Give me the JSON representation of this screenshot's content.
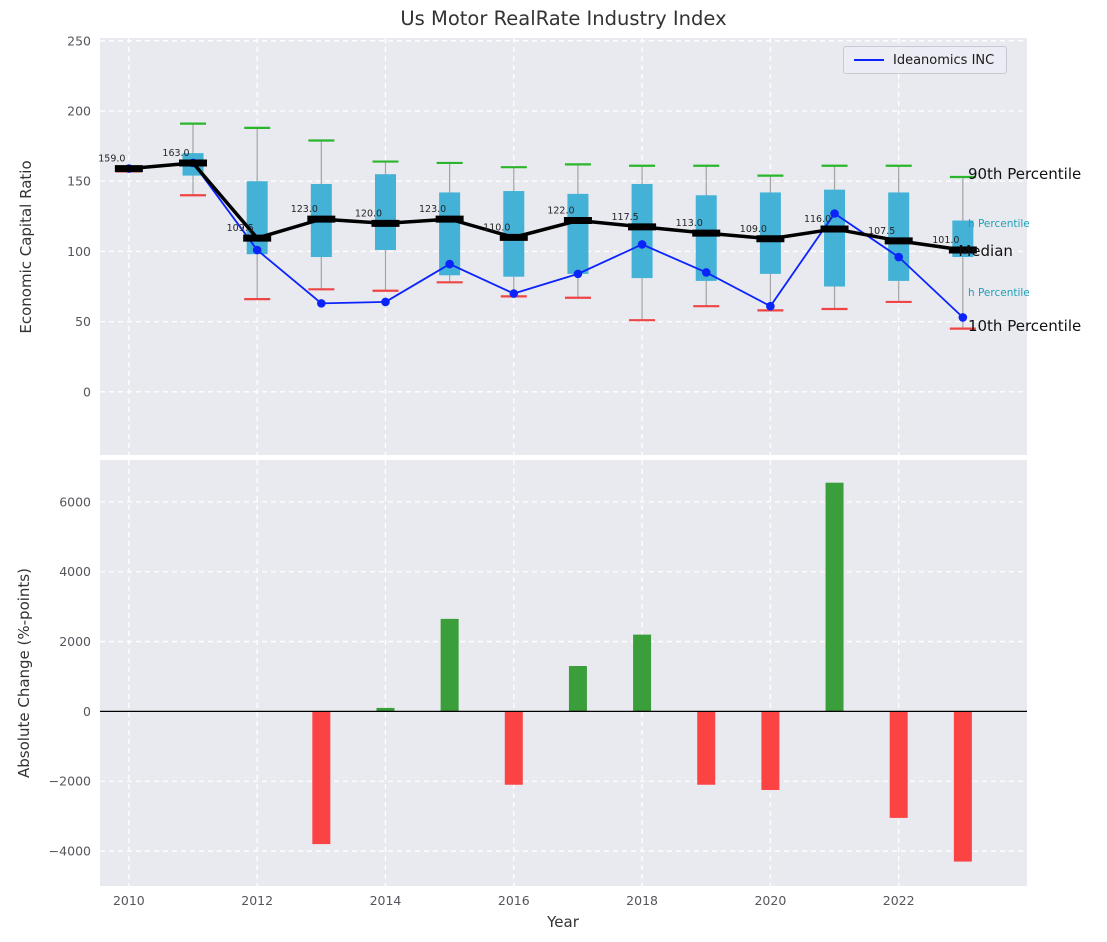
{
  "figure": {
    "title": "Us Motor RealRate Industry Index",
    "background": "#ffffff",
    "plot_background": "#e9eaf0"
  },
  "chart_data": [
    {
      "type": "boxplot",
      "title": "Us Motor RealRate Industry Index",
      "ylabel": "Economic Capital Ratio",
      "grid": true,
      "legend": {
        "position": "upper right",
        "label": "Ideanomics INC"
      },
      "xlim": [
        2009.55,
        2024.0
      ],
      "ylim": [
        -45,
        252
      ],
      "yticks": [
        0,
        50,
        100,
        150,
        200,
        250
      ],
      "xticks": [
        2010,
        2012,
        2014,
        2016,
        2018,
        2020,
        2022
      ],
      "years": [
        2010,
        2011,
        2012,
        2013,
        2014,
        2015,
        2016,
        2017,
        2018,
        2019,
        2020,
        2021,
        2022,
        2023
      ],
      "p90": [
        160.5,
        191,
        188,
        179,
        164,
        163,
        160,
        162,
        161,
        161,
        154,
        161,
        161,
        153
      ],
      "p75": [
        160,
        170,
        150,
        148,
        155,
        142,
        143,
        141,
        148,
        140,
        142,
        144,
        142,
        122
      ],
      "median": [
        159,
        163,
        109.5,
        123,
        120,
        123,
        110,
        122,
        117.5,
        113,
        109,
        116,
        107.5,
        101
      ],
      "p25": [
        158,
        154,
        98,
        96,
        101,
        83,
        82,
        84,
        81,
        79,
        84,
        75,
        79,
        96
      ],
      "p10": [
        157,
        140,
        66,
        73,
        72,
        78,
        68,
        67,
        51,
        61,
        58,
        59,
        64,
        45
      ],
      "median_labels": [
        "159.0",
        "163.0",
        "109.5",
        "123.0",
        "120.0",
        "123.0",
        "110.0",
        "122.0",
        "117.5",
        "113.0",
        "109.0",
        "116.0",
        "107.5",
        "101.0"
      ],
      "company_series": {
        "name": "Ideanomics INC",
        "values": [
          159,
          163,
          101,
          63,
          64,
          91,
          70,
          84,
          105,
          85,
          61,
          127,
          96,
          53
        ]
      },
      "annotations": [
        {
          "text": "90th Percentile",
          "x": 2023.08,
          "y": 155,
          "fontsize": 15,
          "color": "#111111"
        },
        {
          "text": "h Percentile",
          "x": 2023.08,
          "y": 119,
          "fontsize": 10.5,
          "color": "#1d9fb5"
        },
        {
          "text": "Median",
          "x": 2022.93,
          "y": 100,
          "fontsize": 15,
          "color": "#111111"
        },
        {
          "text": "h Percentile",
          "x": 2023.08,
          "y": 70,
          "fontsize": 10.5,
          "color": "#1d9fb5"
        },
        {
          "text": "10th Percentile",
          "x": 2023.08,
          "y": 47,
          "fontsize": 15,
          "color": "#111111"
        }
      ],
      "colors": {
        "box": "#44b1d6",
        "whisker": "#a3a3a3",
        "cap_top": "#2bb52b",
        "cap_bottom": "#ee4444",
        "median": "#000000",
        "company": "#0b24fb"
      }
    },
    {
      "type": "bar",
      "ylabel": "Absolute Change (%-points)",
      "xlabel": "Year",
      "grid": true,
      "xlim": [
        2009.55,
        2024.0
      ],
      "ylim": [
        -5000,
        7200
      ],
      "yticks": [
        -4000,
        -2000,
        0,
        2000,
        4000,
        6000
      ],
      "xticks": [
        2010,
        2012,
        2014,
        2016,
        2018,
        2020,
        2022
      ],
      "categories": [
        2010,
        2011,
        2012,
        2013,
        2014,
        2015,
        2016,
        2017,
        2018,
        2019,
        2020,
        2021,
        2022,
        2023
      ],
      "values": [
        null,
        null,
        null,
        -3800,
        100,
        2650,
        -2100,
        1300,
        2200,
        -2100,
        -2250,
        6550,
        -3050,
        -4300
      ],
      "colors": {
        "positive": "#3a9e3a",
        "negative": "#fc4343",
        "zero_line": "#000000"
      }
    }
  ]
}
